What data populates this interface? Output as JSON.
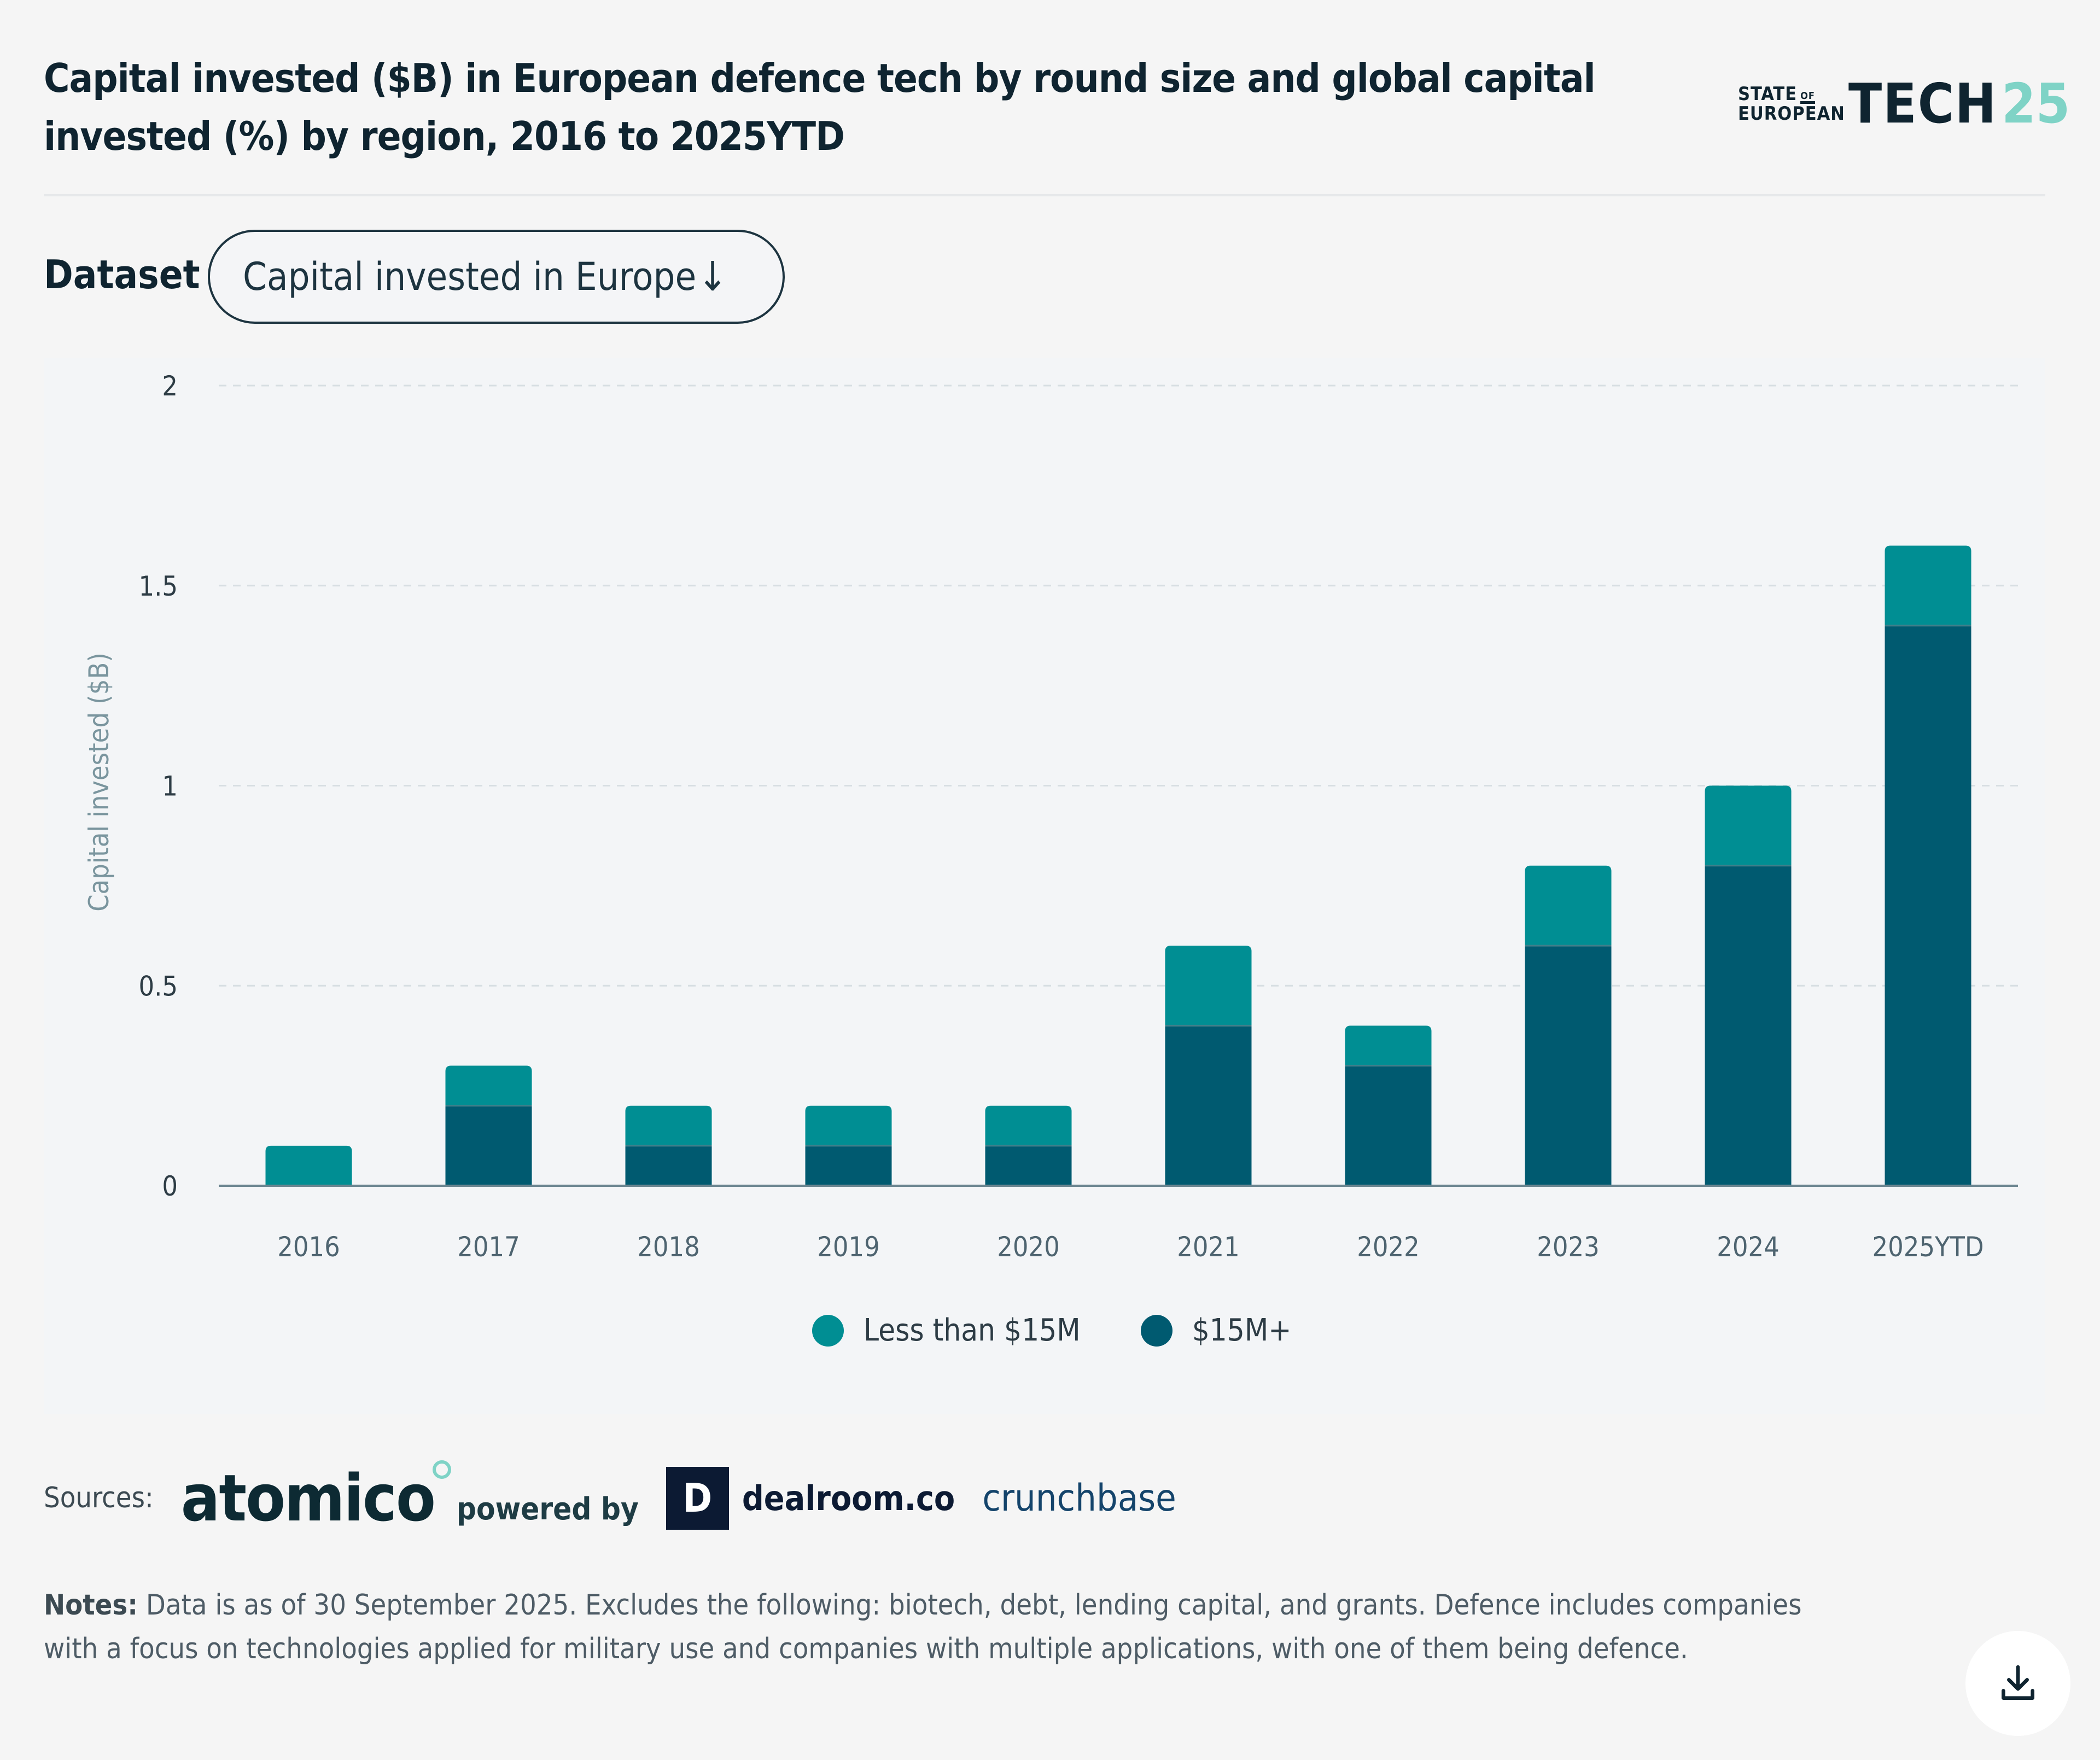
{
  "header": {
    "title": "Capital invested ($B) in European defence tech by round size and global capital invested (%) by region, 2016 to 2025YTD",
    "logo": {
      "line1": "STATE",
      "of": "OF",
      "line2": "EUROPEAN",
      "tech": "TECH",
      "year": "25"
    }
  },
  "controls": {
    "dataset_label": "Dataset",
    "dataset_value": "Capital invested in Europe",
    "dataset_arrow": "↓"
  },
  "colors": {
    "less_than_15m": "#008e93",
    "15m_plus": "#005a70",
    "gridline": "#d7dee2",
    "axis": "#6b8590"
  },
  "chart_data": {
    "type": "bar",
    "stacked": true,
    "title": "Capital invested ($B) in European defence tech by round size and global capital invested (%) by region, 2016 to 2025YTD",
    "xlabel": "",
    "ylabel": "Capital invested ($B)",
    "ylim": [
      0,
      2
    ],
    "yticks": [
      "0",
      "0.5",
      "1",
      "1.5",
      "2"
    ],
    "ytick_values": [
      0,
      0.5,
      1,
      1.5,
      2
    ],
    "grid": true,
    "legend_position": "bottom-center",
    "categories": [
      "2016",
      "2017",
      "2018",
      "2019",
      "2020",
      "2021",
      "2022",
      "2023",
      "2024",
      "2025YTD"
    ],
    "series": [
      {
        "name": "$15M+",
        "color": "#005a70",
        "values": [
          0,
          0.2,
          0.1,
          0.1,
          0.1,
          0.4,
          0.3,
          0.6,
          0.8,
          1.4
        ]
      },
      {
        "name": "Less than $15M",
        "color": "#008e93",
        "values": [
          0.1,
          0.1,
          0.1,
          0.1,
          0.1,
          0.2,
          0.1,
          0.2,
          0.2,
          0.2
        ]
      }
    ]
  },
  "legend": [
    {
      "label": "Less than $15M",
      "color": "#008e93"
    },
    {
      "label": "$15M+",
      "color": "#005a70"
    }
  ],
  "sources": {
    "label": "Sources:",
    "atomico": "atomico",
    "powered_by": "powered by",
    "dealroom_mark": "D",
    "dealroom": "dealroom.co",
    "crunchbase": "crunchbase"
  },
  "notes": {
    "label": "Notes:",
    "text": "Data is as of 30 September 2025. Excludes the following: biotech, debt, lending capital, and grants. Defence includes companies with a focus on technologies applied for military use and companies with multiple applications, with one of them being defence."
  },
  "download": {
    "icon": "download-icon"
  }
}
